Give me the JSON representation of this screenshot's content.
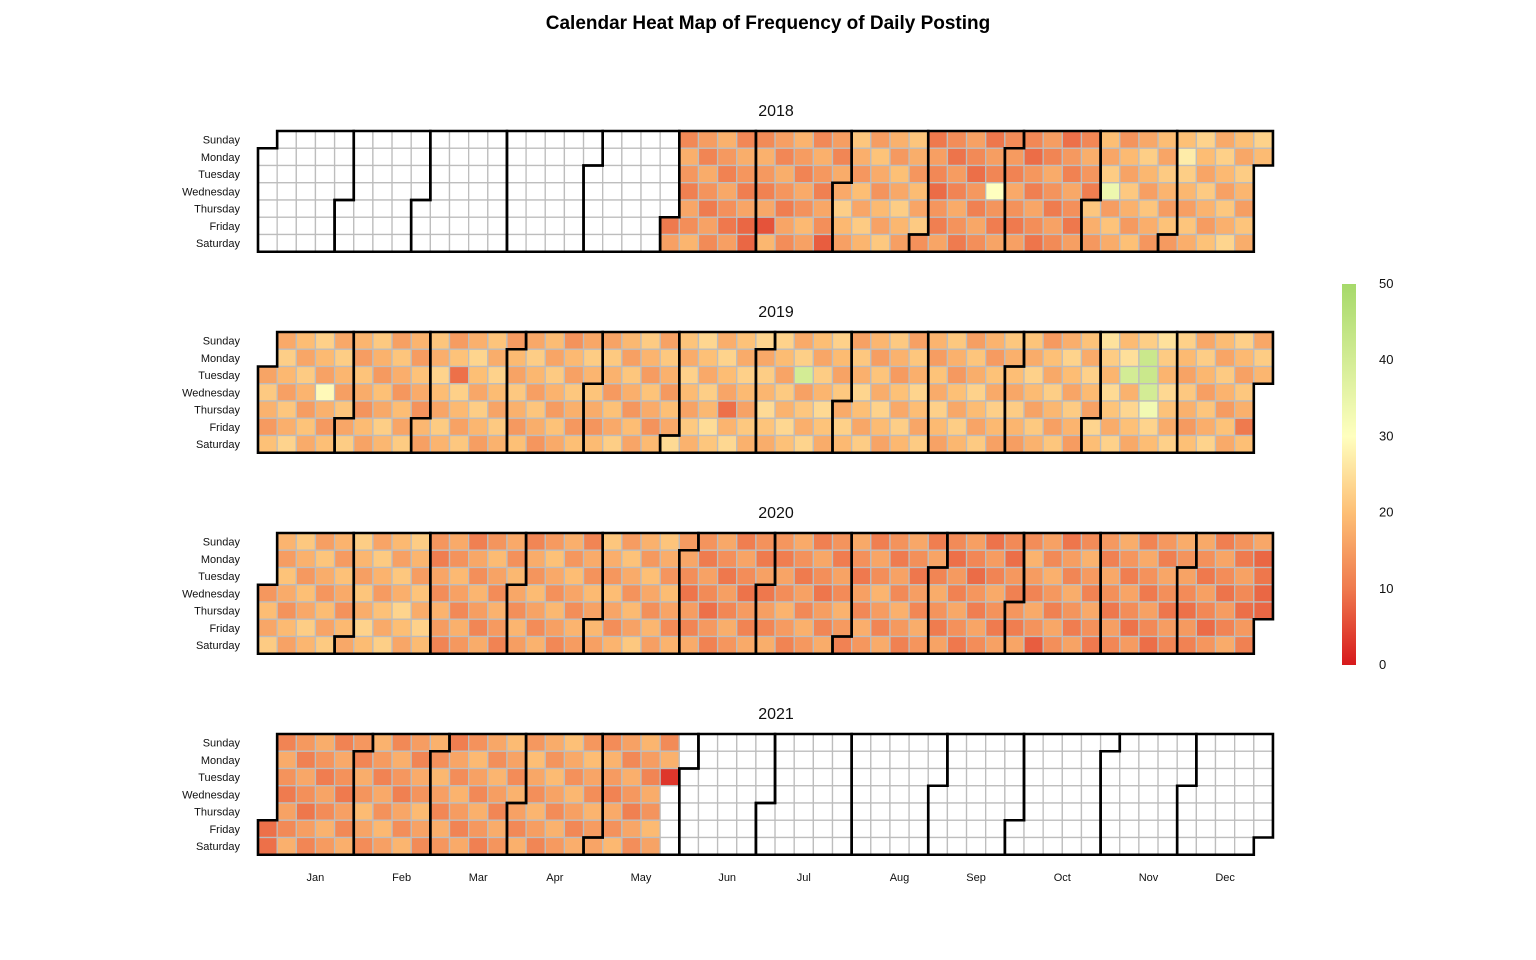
{
  "chart_data": {
    "type": "heatmap",
    "title": "Calendar Heat Map of Frequency of Daily Posting",
    "weekdays": [
      "Sunday",
      "Monday",
      "Tuesday",
      "Wednesday",
      "Thursday",
      "Friday",
      "Saturday"
    ],
    "months": [
      "Jan",
      "Feb",
      "Mar",
      "Apr",
      "May",
      "Jun",
      "Jul",
      "Aug",
      "Sep",
      "Oct",
      "Nov",
      "Dec"
    ],
    "legend": {
      "min": 0,
      "max": 50,
      "ticks": [
        0,
        10,
        20,
        30,
        40,
        50
      ]
    },
    "colorscale": [
      {
        "value": 0,
        "color": "#d7191c"
      },
      {
        "value": 10,
        "color": "#ef7a4e"
      },
      {
        "value": 20,
        "color": "#fdbf75"
      },
      {
        "value": 30,
        "color": "#ffffbf"
      },
      {
        "value": 50,
        "color": "#a6d96a"
      }
    ],
    "years": [
      {
        "year": "2018",
        "data_start": "2018-06-01",
        "data_end": "2018-12-31",
        "monthly_typical": {
          "Jun": 14,
          "Jul": 15,
          "Aug": 18,
          "Sep": 13,
          "Oct": 13,
          "Nov": 18,
          "Dec": 19
        },
        "outliers": [
          {
            "date": "2018-09-26",
            "value": 30
          },
          {
            "date": "2018-11-07",
            "value": 34
          },
          {
            "date": "2018-12-03",
            "value": 27
          },
          {
            "date": "2018-06-29",
            "value": 8
          },
          {
            "date": "2018-07-06",
            "value": 6
          },
          {
            "date": "2018-07-28",
            "value": 7
          },
          {
            "date": "2018-06-30",
            "value": 8
          }
        ]
      },
      {
        "year": "2019",
        "data_start": "2019-01-01",
        "data_end": "2019-12-31",
        "monthly_typical": {
          "Jan": 19,
          "Feb": 18,
          "Mar": 19,
          "Apr": 18,
          "May": 18,
          "Jun": 20,
          "Jul": 20,
          "Aug": 19,
          "Sep": 19,
          "Oct": 19,
          "Nov": 21,
          "Dec": 19
        },
        "outliers": [
          {
            "date": "2019-07-16",
            "value": 40
          },
          {
            "date": "2019-11-12",
            "value": 40
          },
          {
            "date": "2019-11-19",
            "value": 42
          },
          {
            "date": "2019-11-20",
            "value": 40
          },
          {
            "date": "2019-11-18",
            "value": 42
          },
          {
            "date": "2019-11-21",
            "value": 33
          },
          {
            "date": "2019-01-23",
            "value": 29
          },
          {
            "date": "2019-03-12",
            "value": 9
          },
          {
            "date": "2019-06-20",
            "value": 9
          },
          {
            "date": "2019-12-27",
            "value": 10
          }
        ]
      },
      {
        "year": "2020",
        "data_start": "2020-01-01",
        "data_end": "2020-12-31",
        "monthly_typical": {
          "Jan": 18,
          "Feb": 19,
          "Mar": 15,
          "Apr": 16,
          "May": 17,
          "Jun": 13,
          "Jul": 14,
          "Aug": 14,
          "Sep": 13,
          "Oct": 14,
          "Nov": 13,
          "Dec": 13
        },
        "outliers": [
          {
            "date": "2020-10-10",
            "value": 7
          },
          {
            "date": "2020-12-28",
            "value": 8
          },
          {
            "date": "2020-12-30",
            "value": 8
          },
          {
            "date": "2020-12-31",
            "value": 8
          }
        ]
      },
      {
        "year": "2021",
        "data_start": "2021-01-01",
        "data_end": "2021-05-25",
        "monthly_typical": {
          "Jan": 14,
          "Feb": 15,
          "Mar": 15,
          "Apr": 16,
          "May": 15
        },
        "outliers": [
          {
            "date": "2021-01-01",
            "value": 9
          },
          {
            "date": "2021-01-02",
            "value": 9
          },
          {
            "date": "2021-05-25",
            "value": 3
          }
        ]
      }
    ]
  }
}
